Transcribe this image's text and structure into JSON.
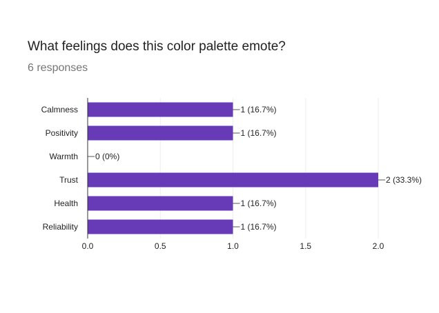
{
  "question": {
    "title": "What feelings does this color palette emote?",
    "responses": "6 responses"
  },
  "chart_data": {
    "type": "bar",
    "orientation": "horizontal",
    "categories": [
      "Calmness",
      "Positivity",
      "Warmth",
      "Trust",
      "Health",
      "Reliability"
    ],
    "values": [
      1,
      1,
      0,
      2,
      1,
      1
    ],
    "data_labels": [
      "1 (16.7%)",
      "1 (16.7%)",
      "0 (0%)",
      "2 (33.3%)",
      "1 (16.7%)",
      "1 (16.7%)"
    ],
    "x_ticks": [
      "0.0",
      "0.5",
      "1.0",
      "1.5",
      "2.0"
    ],
    "xlim": [
      0,
      2
    ],
    "grid": true,
    "legend": "none",
    "bar_color": "#673ab7"
  }
}
